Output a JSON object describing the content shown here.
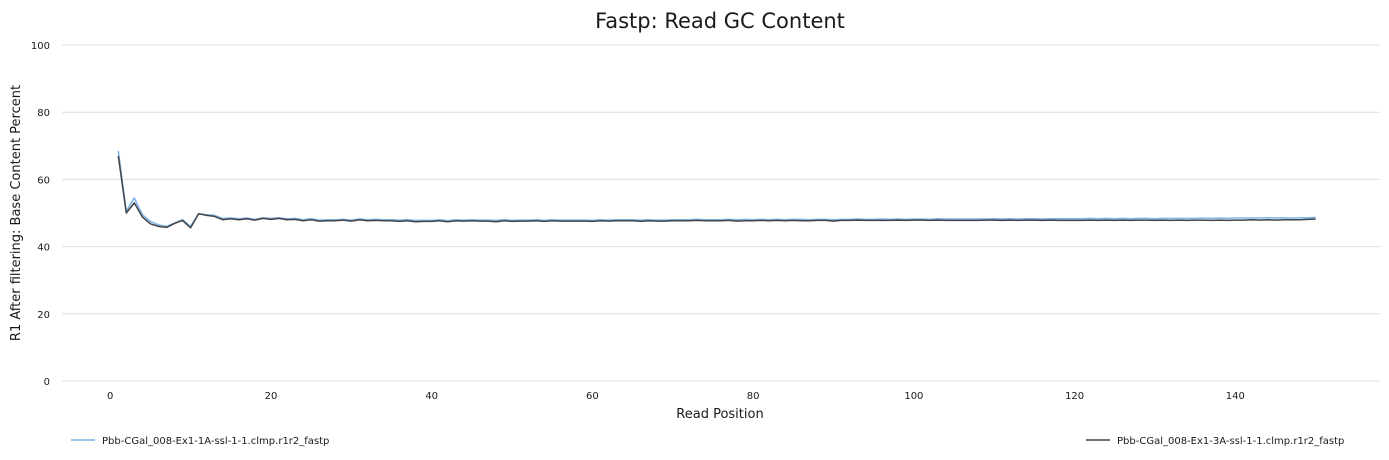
{
  "chart_data": {
    "type": "line",
    "title": "Fastp: Read GC Content",
    "xlabel": "Read Position",
    "ylabel": "R1 After filtering: Base Content Percent",
    "xlim": [
      -6,
      158
    ],
    "ylim": [
      0,
      100
    ],
    "x_ticks": [
      0,
      20,
      40,
      60,
      80,
      100,
      120,
      140
    ],
    "y_ticks": [
      0,
      20,
      40,
      60,
      80,
      100
    ],
    "grid": true,
    "legend_position": "bottom",
    "x": [
      1,
      2,
      3,
      4,
      5,
      6,
      7,
      8,
      9,
      10,
      11,
      12,
      13,
      14,
      15,
      16,
      17,
      18,
      19,
      20,
      21,
      22,
      23,
      24,
      25,
      26,
      27,
      28,
      29,
      30,
      31,
      32,
      33,
      34,
      35,
      36,
      37,
      38,
      39,
      40,
      41,
      42,
      43,
      44,
      45,
      46,
      47,
      48,
      49,
      50,
      51,
      52,
      53,
      54,
      55,
      56,
      57,
      58,
      59,
      60,
      61,
      62,
      63,
      64,
      65,
      66,
      67,
      68,
      69,
      70,
      71,
      72,
      73,
      74,
      75,
      76,
      77,
      78,
      79,
      80,
      81,
      82,
      83,
      84,
      85,
      86,
      87,
      88,
      89,
      90,
      91,
      92,
      93,
      94,
      95,
      96,
      97,
      98,
      99,
      100,
      101,
      102,
      103,
      104,
      105,
      106,
      107,
      108,
      109,
      110,
      111,
      112,
      113,
      114,
      115,
      116,
      117,
      118,
      119,
      120,
      121,
      122,
      123,
      124,
      125,
      126,
      127,
      128,
      129,
      130,
      131,
      132,
      133,
      134,
      135,
      136,
      137,
      138,
      139,
      140,
      141,
      142,
      143,
      144,
      145,
      146,
      147,
      148,
      149,
      150
    ],
    "series": [
      {
        "name": "Pbb-CGal_008-Ex1-1A-ssl-1-1.clmp.r1r2_fastp",
        "color": "#7cb5ec",
        "values": [
          68.5,
          50.5,
          54.5,
          49.5,
          47.5,
          46.5,
          46.0,
          47.0,
          48.0,
          46.0,
          49.8,
          49.5,
          49.3,
          48.4,
          48.5,
          48.3,
          48.5,
          48.1,
          48.6,
          48.4,
          48.6,
          48.3,
          48.4,
          48.0,
          48.3,
          47.9,
          48.0,
          48.0,
          48.1,
          47.9,
          48.2,
          48.0,
          48.1,
          48.0,
          48.0,
          47.9,
          48.0,
          47.8,
          47.8,
          47.8,
          48.0,
          47.7,
          48.0,
          47.9,
          48.0,
          47.9,
          47.9,
          47.8,
          48.0,
          47.8,
          47.9,
          47.9,
          48.0,
          47.8,
          48.0,
          47.9,
          47.9,
          47.9,
          47.9,
          47.8,
          48.0,
          47.9,
          48.0,
          48.0,
          48.0,
          47.9,
          48.0,
          47.9,
          47.9,
          48.0,
          48.0,
          48.0,
          48.1,
          48.0,
          48.0,
          48.0,
          48.1,
          48.0,
          48.1,
          48.0,
          48.1,
          48.0,
          48.1,
          48.0,
          48.1,
          48.1,
          48.0,
          48.1,
          48.1,
          48.0,
          48.1,
          48.1,
          48.2,
          48.1,
          48.1,
          48.2,
          48.1,
          48.2,
          48.1,
          48.2,
          48.2,
          48.1,
          48.3,
          48.2,
          48.2,
          48.2,
          48.2,
          48.2,
          48.2,
          48.3,
          48.2,
          48.3,
          48.2,
          48.3,
          48.3,
          48.2,
          48.3,
          48.3,
          48.3,
          48.3,
          48.3,
          48.4,
          48.3,
          48.4,
          48.3,
          48.4,
          48.3,
          48.4,
          48.4,
          48.3,
          48.4,
          48.4,
          48.4,
          48.4,
          48.4,
          48.5,
          48.4,
          48.5,
          48.4,
          48.5,
          48.5,
          48.5,
          48.5,
          48.6,
          48.5,
          48.6,
          48.5,
          48.6,
          48.6,
          48.7
        ]
      },
      {
        "name": "Pbb-CGal_008-Ex1-3A-ssl-1-1.clmp.r1r2_fastp",
        "color": "#434348",
        "values": [
          67.0,
          50.0,
          53.0,
          48.8,
          46.8,
          46.0,
          45.7,
          46.9,
          47.8,
          45.6,
          49.8,
          49.3,
          49.0,
          48.0,
          48.3,
          48.0,
          48.3,
          47.9,
          48.4,
          48.1,
          48.4,
          48.0,
          48.1,
          47.7,
          48.0,
          47.6,
          47.7,
          47.7,
          47.9,
          47.6,
          48.0,
          47.7,
          47.8,
          47.7,
          47.7,
          47.5,
          47.7,
          47.4,
          47.5,
          47.5,
          47.7,
          47.4,
          47.7,
          47.6,
          47.7,
          47.6,
          47.6,
          47.4,
          47.7,
          47.5,
          47.6,
          47.6,
          47.7,
          47.5,
          47.7,
          47.6,
          47.6,
          47.6,
          47.6,
          47.5,
          47.7,
          47.6,
          47.7,
          47.7,
          47.7,
          47.5,
          47.7,
          47.6,
          47.6,
          47.7,
          47.7,
          47.7,
          47.8,
          47.7,
          47.7,
          47.7,
          47.8,
          47.6,
          47.7,
          47.7,
          47.8,
          47.7,
          47.8,
          47.7,
          47.8,
          47.7,
          47.7,
          47.8,
          47.8,
          47.6,
          47.8,
          47.8,
          47.9,
          47.8,
          47.8,
          47.8,
          47.8,
          47.9,
          47.8,
          47.9,
          47.9,
          47.8,
          47.9,
          47.8,
          47.8,
          47.8,
          47.8,
          47.8,
          47.9,
          47.9,
          47.8,
          47.9,
          47.8,
          47.9,
          47.9,
          47.8,
          47.9,
          47.8,
          47.8,
          47.8,
          47.8,
          47.9,
          47.8,
          47.9,
          47.8,
          47.9,
          47.8,
          47.9,
          47.9,
          47.8,
          47.9,
          47.8,
          47.9,
          47.8,
          47.9,
          47.9,
          47.8,
          47.9,
          47.8,
          47.9,
          47.9,
          48.0,
          47.9,
          48.0,
          47.9,
          48.0,
          48.0,
          48.0,
          48.1,
          48.2
        ]
      }
    ]
  }
}
